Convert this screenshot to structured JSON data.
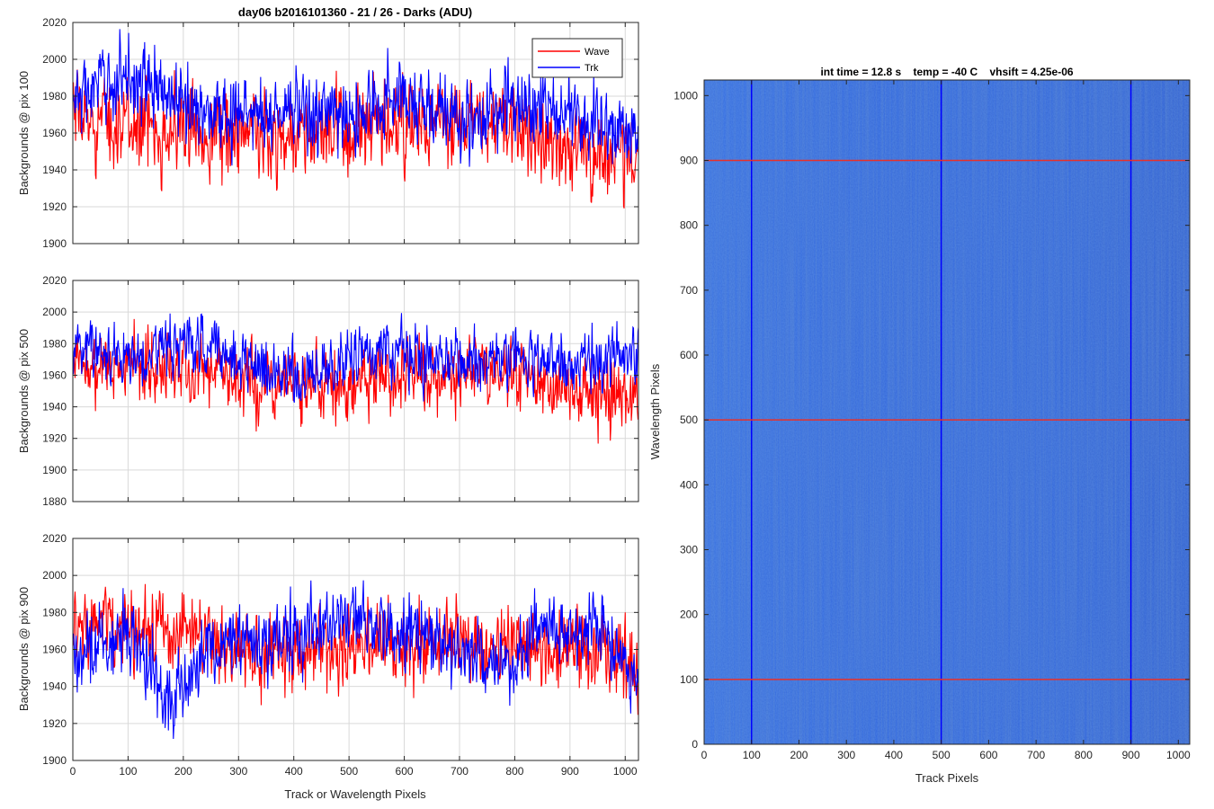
{
  "figure_title": "day06 b2016101360 - 21 / 26 - Darks (ADU)",
  "legend": [
    {
      "label": "Wave",
      "color": "#ff0000"
    },
    {
      "label": "Trk",
      "color": "#0000ff"
    }
  ],
  "colors": {
    "wave": "#ff0000",
    "trk": "#0000ff",
    "image_base": "#2a5fdc",
    "grid": "#d9d9d9",
    "marker_red": "#e8302a"
  },
  "chart_data": [
    {
      "type": "line",
      "title": "day06 b2016101360 - 21 / 26 - Darks (ADU)",
      "xlabel": "",
      "ylabel": "Backgrounds @ pix 100",
      "xlim": [
        0,
        1024
      ],
      "ylim": [
        1900,
        2020
      ],
      "xticks": [
        0,
        100,
        200,
        300,
        400,
        500,
        600,
        700,
        800,
        900,
        1000
      ],
      "yticks": [
        1900,
        1920,
        1940,
        1960,
        1980,
        2000,
        2020
      ],
      "grid": true,
      "legend_position": "top-right",
      "series": [
        {
          "name": "Wave",
          "color": "#ff0000",
          "x_range": [
            1,
            1024
          ],
          "mean": 1963,
          "noise_amplitude": 17,
          "envelope_x": [
            0,
            100,
            200,
            300,
            400,
            500,
            600,
            700,
            800,
            900,
            1024
          ],
          "envelope_y": [
            1968,
            1965,
            1962,
            1960,
            1958,
            1960,
            1963,
            1965,
            1963,
            1952,
            1945
          ]
        },
        {
          "name": "Trk",
          "color": "#0000ff",
          "x_range": [
            1,
            1024
          ],
          "mean": 1978,
          "noise_amplitude": 15,
          "envelope_x": [
            0,
            100,
            200,
            300,
            400,
            500,
            600,
            700,
            800,
            900,
            1024
          ],
          "envelope_y": [
            1978,
            1992,
            1975,
            1970,
            1972,
            1968,
            1982,
            1965,
            1975,
            1970,
            1958
          ]
        }
      ]
    },
    {
      "type": "line",
      "title": "",
      "xlabel": "",
      "ylabel": "Backgrounds @ pix 500",
      "xlim": [
        0,
        1024
      ],
      "ylim": [
        1880,
        2020
      ],
      "xticks": [
        0,
        100,
        200,
        300,
        400,
        500,
        600,
        700,
        800,
        900,
        1000
      ],
      "yticks": [
        1880,
        1900,
        1920,
        1940,
        1960,
        1980,
        2000,
        2020
      ],
      "grid": true,
      "series": [
        {
          "name": "Wave",
          "color": "#ff0000",
          "x_range": [
            1,
            1024
          ],
          "mean": 1962,
          "noise_amplitude": 16,
          "envelope_x": [
            0,
            100,
            200,
            300,
            400,
            500,
            600,
            700,
            800,
            900,
            1024
          ],
          "envelope_y": [
            1968,
            1965,
            1967,
            1958,
            1955,
            1955,
            1962,
            1965,
            1962,
            1950,
            1945
          ]
        },
        {
          "name": "Trk",
          "color": "#0000ff",
          "x_range": [
            1,
            1024
          ],
          "mean": 1974,
          "noise_amplitude": 14,
          "envelope_x": [
            0,
            100,
            200,
            300,
            400,
            500,
            600,
            700,
            800,
            900,
            1024
          ],
          "envelope_y": [
            1980,
            1972,
            1980,
            1972,
            1960,
            1970,
            1975,
            1970,
            1972,
            1968,
            1975
          ]
        }
      ]
    },
    {
      "type": "line",
      "title": "",
      "xlabel": "Track or Wavelength Pixels",
      "ylabel": "Backgrounds @ pix 900",
      "xlim": [
        0,
        1024
      ],
      "ylim": [
        1900,
        2020
      ],
      "xticks": [
        0,
        100,
        200,
        300,
        400,
        500,
        600,
        700,
        800,
        900,
        1000
      ],
      "yticks": [
        1900,
        1920,
        1940,
        1960,
        1980,
        2000,
        2020
      ],
      "grid": true,
      "series": [
        {
          "name": "Wave",
          "color": "#ff0000",
          "x_range": [
            1,
            1024
          ],
          "mean": 1965,
          "noise_amplitude": 15,
          "envelope_x": [
            0,
            100,
            200,
            300,
            400,
            500,
            600,
            700,
            800,
            900,
            1024
          ],
          "envelope_y": [
            1975,
            1972,
            1968,
            1960,
            1960,
            1962,
            1962,
            1965,
            1962,
            1958,
            1955
          ]
        },
        {
          "name": "Trk",
          "color": "#0000ff",
          "x_range": [
            1,
            1024
          ],
          "mean": 1962,
          "noise_amplitude": 14,
          "envelope_x": [
            0,
            100,
            180,
            250,
            400,
            500,
            600,
            700,
            780,
            850,
            950,
            1024
          ],
          "envelope_y": [
            1955,
            1970,
            1932,
            1962,
            1965,
            1980,
            1968,
            1962,
            1948,
            1975,
            1972,
            1940
          ]
        }
      ]
    },
    {
      "type": "heatmap",
      "title": "int time = 12.8 s    temp = -40 C    vhsift = 4.25e-06",
      "xlabel": "Track Pixels",
      "ylabel": "Wavelength Pixels",
      "xlim": [
        0,
        1024
      ],
      "ylim": [
        0,
        1024
      ],
      "xticks": [
        0,
        100,
        200,
        300,
        400,
        500,
        600,
        700,
        800,
        900,
        1000
      ],
      "yticks": [
        0,
        100,
        200,
        300,
        400,
        500,
        600,
        700,
        800,
        900,
        1000
      ],
      "colormap": "parula",
      "vertical_markers": {
        "x": [
          100,
          500,
          900
        ],
        "color": "#0000ff"
      },
      "horizontal_markers": {
        "y": [
          100,
          500,
          900
        ],
        "color": "#e8302a"
      }
    }
  ]
}
